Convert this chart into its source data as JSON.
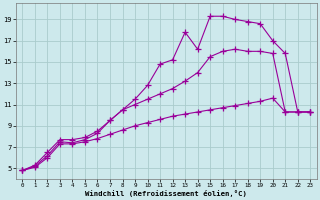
{
  "xlabel": "Windchill (Refroidissement éolien,°C)",
  "xlim": [
    -0.5,
    23.5
  ],
  "ylim": [
    4.0,
    20.5
  ],
  "xticks": [
    0,
    1,
    2,
    3,
    4,
    5,
    6,
    7,
    8,
    9,
    10,
    11,
    12,
    13,
    14,
    15,
    16,
    17,
    18,
    19,
    20,
    21,
    22,
    23
  ],
  "yticks": [
    5,
    7,
    9,
    11,
    13,
    15,
    17,
    19
  ],
  "bg_color": "#cde9ec",
  "grid_color": "#aacccc",
  "line_color": "#990099",
  "curve_jagged_x": [
    0,
    1,
    2,
    3,
    4,
    5,
    6,
    7,
    8,
    9,
    10,
    11,
    12,
    13,
    14,
    15,
    16,
    17,
    18,
    19,
    20,
    21,
    22,
    23
  ],
  "curve_jagged_y": [
    4.8,
    5.2,
    6.2,
    7.5,
    7.4,
    7.7,
    8.3,
    9.5,
    10.5,
    11.5,
    12.8,
    14.8,
    15.2,
    17.8,
    16.2,
    19.3,
    19.3,
    19.0,
    18.8,
    18.6,
    17.0,
    15.8,
    10.3,
    10.3
  ],
  "curve_smooth_x": [
    0,
    1,
    2,
    3,
    4,
    5,
    6,
    7,
    8,
    9,
    10,
    11,
    12,
    13,
    14,
    15,
    16,
    17,
    18,
    19,
    20,
    21,
    22,
    23
  ],
  "curve_smooth_y": [
    4.8,
    5.3,
    6.5,
    7.7,
    7.7,
    7.9,
    8.5,
    9.5,
    10.5,
    11.0,
    11.5,
    12.0,
    12.5,
    13.2,
    14.0,
    15.5,
    16.0,
    16.2,
    16.0,
    16.0,
    15.8,
    10.3,
    10.3,
    10.3
  ],
  "curve_flat_x": [
    0,
    1,
    2,
    3,
    4,
    5,
    6,
    7,
    8,
    9,
    10,
    11,
    12,
    13,
    14,
    15,
    16,
    17,
    18,
    19,
    20,
    21,
    22,
    23
  ],
  "curve_flat_y": [
    4.8,
    5.1,
    6.0,
    7.3,
    7.3,
    7.5,
    7.8,
    8.2,
    8.6,
    9.0,
    9.3,
    9.6,
    9.9,
    10.1,
    10.3,
    10.5,
    10.7,
    10.9,
    11.1,
    11.3,
    11.6,
    10.3,
    10.3,
    10.3
  ]
}
